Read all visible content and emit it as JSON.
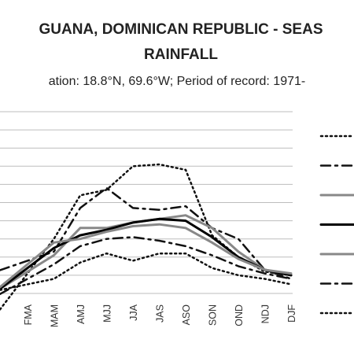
{
  "chart_data": {
    "type": "line",
    "title_line1": "GUANA, DOMINICAN REPUBLIC - SEAS",
    "title_line2": "RAINFALL",
    "subtitle": "ation: 18.8°N, 69.6°W; Period of record: 1971-",
    "categories": [
      "FMA",
      "MAM",
      "AMJ",
      "MJJ",
      "JJA",
      "JAS",
      "ASO",
      "SON",
      "OND",
      "NDJ",
      "DJF"
    ],
    "x_visible_start": 0.35,
    "ylim": [
      0,
      10
    ],
    "grid": true,
    "series": [
      {
        "color": "#111111",
        "dash": "dot",
        "width": 2.5,
        "values": [
          1.1,
          3.0,
          5.4,
          5.7,
          7.0,
          7.1,
          6.8,
          3.2,
          2.0,
          1.2,
          1.0
        ]
      },
      {
        "color": "#111111",
        "dash": "dashdot",
        "width": 2.5,
        "values": [
          1.8,
          2.3,
          4.7,
          5.8,
          4.7,
          4.6,
          4.8,
          3.6,
          3.0,
          1.3,
          0.8
        ]
      },
      {
        "color": "#888888",
        "dash": "solid",
        "width": 3,
        "values": [
          1.2,
          2.1,
          3.6,
          3.6,
          3.9,
          4.1,
          4.3,
          3.6,
          2.3,
          1.3,
          1.0
        ]
      },
      {
        "color": "#000000",
        "dash": "solid",
        "width": 3,
        "values": [
          1.4,
          2.5,
          3.2,
          3.5,
          3.9,
          4.1,
          4.0,
          3.1,
          2.0,
          1.3,
          1.0
        ]
      },
      {
        "color": "#888888",
        "dash": "solid",
        "width": 3,
        "values": [
          1.6,
          2.8,
          3.0,
          3.4,
          3.7,
          3.8,
          3.6,
          2.8,
          1.9,
          1.3,
          1.1
        ]
      },
      {
        "color": "#111111",
        "dash": "dashdot",
        "width": 2.5,
        "values": [
          0.8,
          1.6,
          2.6,
          3.0,
          3.1,
          2.9,
          2.6,
          2.1,
          1.5,
          1.1,
          0.8
        ]
      },
      {
        "color": "#111111",
        "dash": "dot",
        "width": 2.5,
        "values": [
          0.5,
          0.8,
          1.7,
          2.2,
          1.8,
          2.2,
          2.2,
          1.4,
          1.0,
          0.8,
          0.5
        ]
      }
    ],
    "legend": {
      "position": "right"
    }
  }
}
